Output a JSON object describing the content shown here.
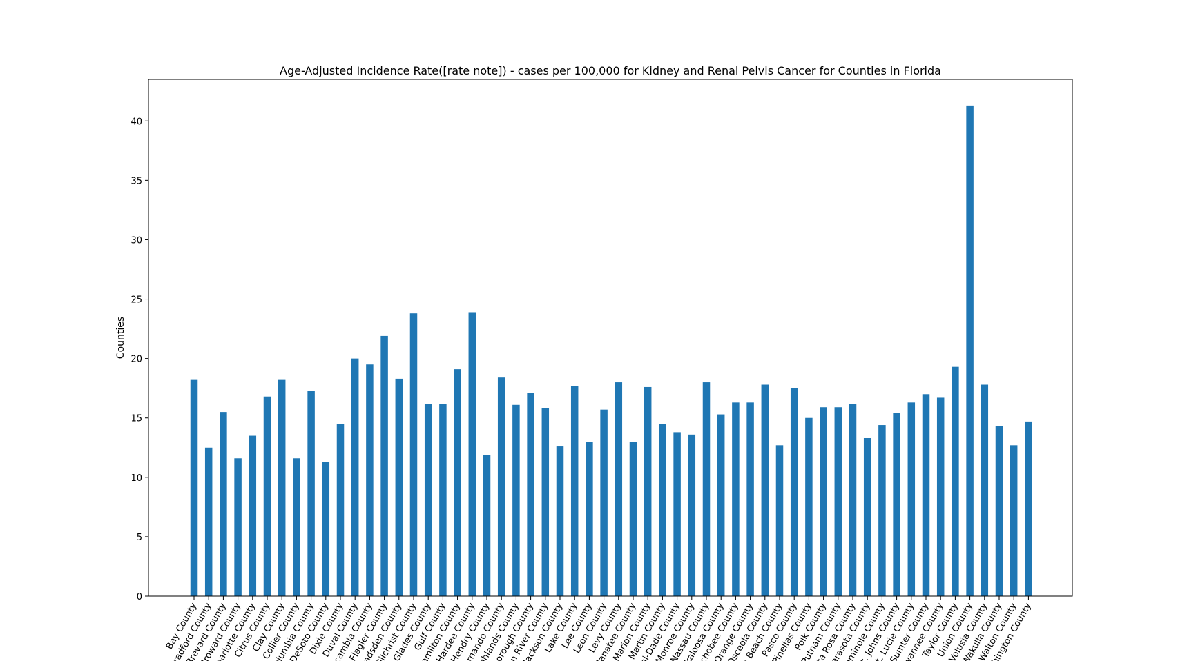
{
  "chart_data": {
    "type": "bar",
    "title": "Age-Adjusted Incidence Rate([rate note]) - cases per 100,000 for Kidney and Renal Pelvis Cancer for Counties in Florida",
    "xlabel": "",
    "ylabel": "Counties",
    "ylim": [
      0,
      43.5
    ],
    "yticks": [
      0,
      5,
      10,
      15,
      20,
      25,
      30,
      35,
      40
    ],
    "grid": false,
    "bar_color": "#1f77b4",
    "categories": [
      "Bay County",
      "Bradford County",
      "Brevard County",
      "Broward County",
      "Charlotte County",
      "Citrus County",
      "Clay County",
      "Collier County",
      "Columbia County",
      "DeSoto County",
      "Dixie County",
      "Duval County",
      "Escambia County",
      "Flagler County",
      "Gadsden County",
      "Gilchrist County",
      "Glades County",
      "Gulf County",
      "Hamilton County",
      "Hardee County",
      "Hendry County",
      "Hernando County",
      "Highlands County",
      "Hillsborough County",
      "Indian River County",
      "Jackson County",
      "Lake County",
      "Lee County",
      "Leon County",
      "Levy County",
      "Manatee County",
      "Marion County",
      "Martin County",
      "Miami-Dade County",
      "Monroe County",
      "Nassau County",
      "Okaloosa County",
      "Okeechobee County",
      "Orange County",
      "Osceola County",
      "Palm Beach County",
      "Pasco County",
      "Pinellas County",
      "Polk County",
      "Putnam County",
      "Santa Rosa County",
      "Sarasota County",
      "Seminole County",
      "St. Johns County",
      "St. Lucie County",
      "Sumter County",
      "Suwannee County",
      "Taylor County",
      "Union County",
      "Volusia County",
      "Wakulla County",
      "Walton County",
      "Washington County"
    ],
    "values": [
      18.2,
      12.5,
      15.5,
      11.6,
      13.5,
      16.8,
      18.2,
      11.6,
      17.3,
      11.3,
      14.5,
      20.0,
      19.5,
      21.9,
      18.3,
      23.8,
      16.2,
      16.2,
      19.1,
      23.9,
      11.9,
      18.4,
      16.1,
      17.1,
      15.8,
      12.6,
      17.7,
      13.0,
      15.7,
      18.0,
      13.0,
      17.6,
      14.5,
      13.8,
      13.6,
      18.0,
      15.3,
      16.3,
      16.3,
      17.8,
      12.7,
      17.5,
      15.0,
      15.9,
      15.9,
      16.2,
      13.3,
      14.4,
      15.4,
      16.3,
      17.0,
      16.7,
      19.3,
      41.3,
      17.8,
      14.3,
      12.7,
      14.7
    ]
  }
}
